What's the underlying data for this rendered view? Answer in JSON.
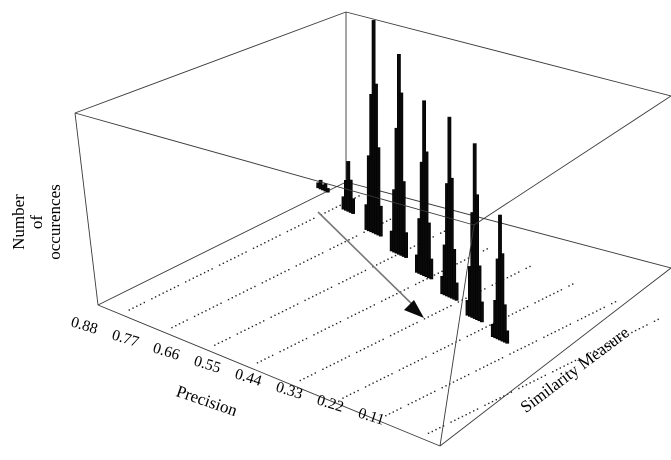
{
  "chart_data": {
    "type": "3d-histogram",
    "zlabel": [
      "Number",
      "of",
      "occurences"
    ],
    "xlabel": "Precision",
    "ylabel": "Similarity Measure",
    "precision_ticks": [
      "0.88",
      "0.77",
      "0.66",
      "0.55",
      "0.44",
      "0.33",
      "0.22",
      "0.11"
    ],
    "grid": false,
    "series": [
      {
        "precision": 0.88,
        "heights": [
          0.02,
          0.035,
          0.02,
          0.03,
          0.015
        ]
      },
      {
        "precision": 0.77,
        "heights": [
          0.05,
          0.12,
          0.2,
          0.13,
          0.06
        ]
      },
      {
        "precision": 0.66,
        "heights": [
          0.1,
          0.3,
          0.55,
          0.85,
          0.6,
          0.35,
          0.12
        ]
      },
      {
        "precision": 0.55,
        "heights": [
          0.08,
          0.25,
          0.5,
          0.8,
          0.65,
          0.3,
          0.1
        ]
      },
      {
        "precision": 0.44,
        "heights": [
          0.07,
          0.22,
          0.45,
          0.7,
          0.5,
          0.22,
          0.08
        ]
      },
      {
        "precision": 0.33,
        "heights": [
          0.07,
          0.2,
          0.45,
          0.72,
          0.48,
          0.2,
          0.07
        ]
      },
      {
        "precision": 0.22,
        "heights": [
          0.06,
          0.2,
          0.42,
          0.7,
          0.5,
          0.22,
          0.08
        ]
      },
      {
        "precision": 0.11,
        "heights": [
          0.05,
          0.15,
          0.32,
          0.5,
          0.35,
          0.15,
          0.05
        ]
      }
    ]
  }
}
